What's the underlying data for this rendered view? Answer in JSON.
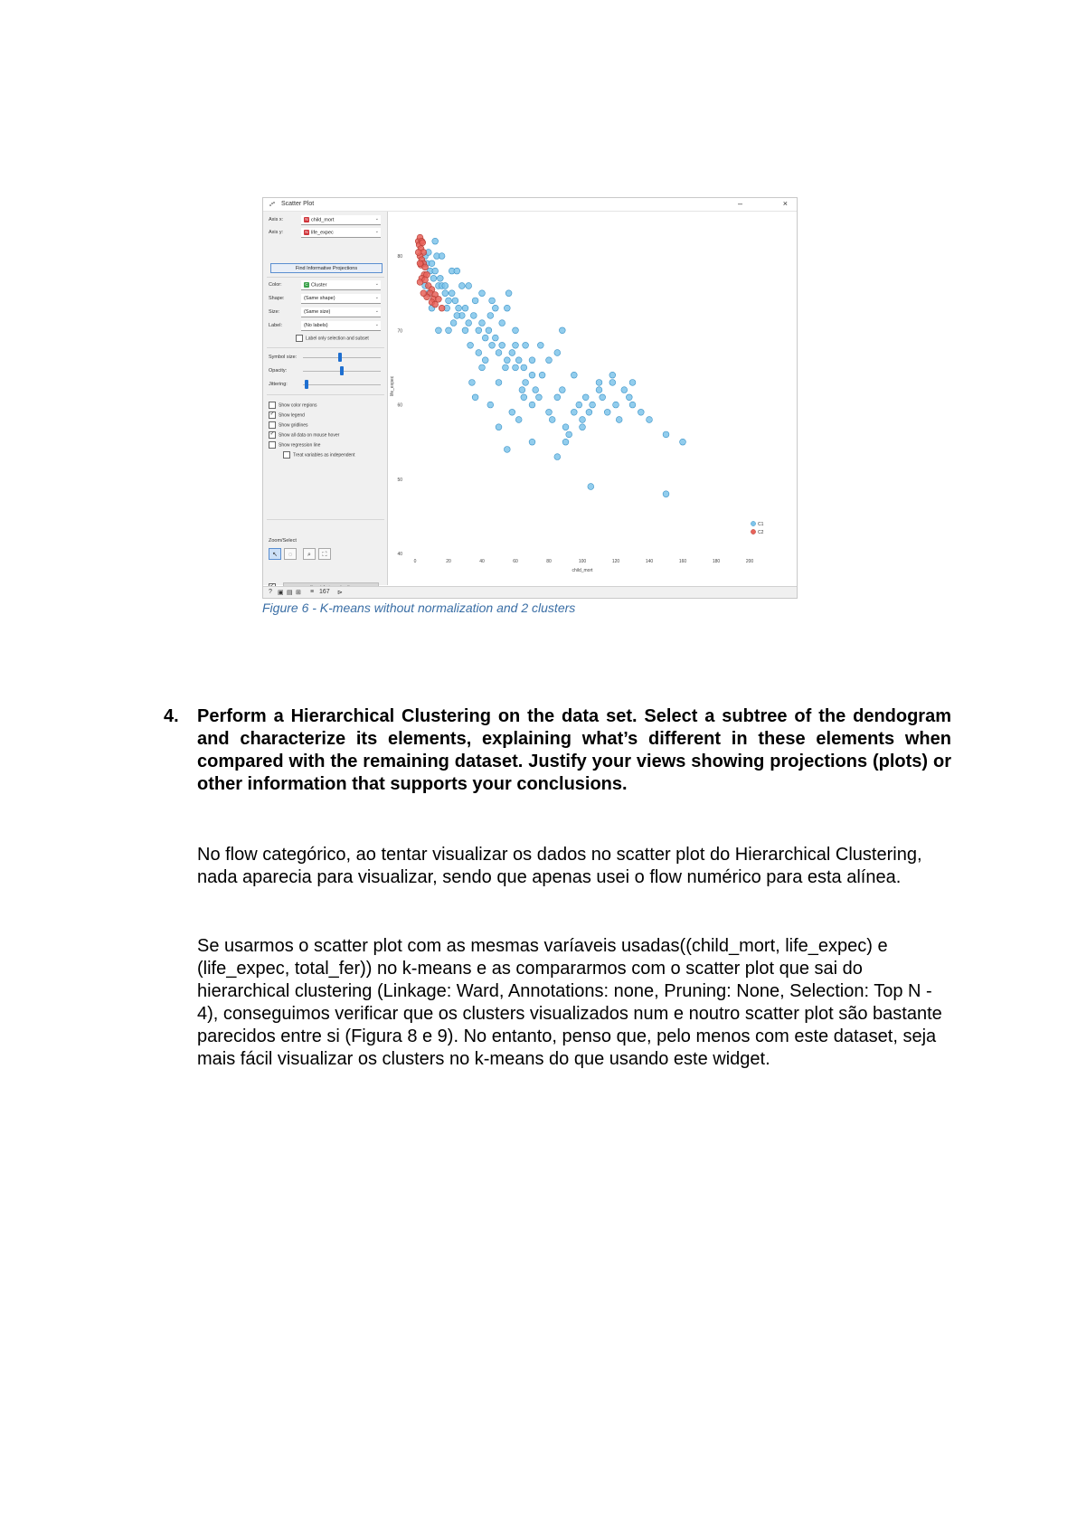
{
  "figure": {
    "window_title": "Scatter Plot",
    "controls": {
      "axis_x_label": "Axis x:",
      "axis_x_value": "child_mort",
      "axis_y_label": "Axis y:",
      "axis_y_value": "life_expec",
      "find_projections_label": "Find Informative Projections",
      "color_label": "Color:",
      "color_value": "Cluster",
      "shape_label": "Shape:",
      "shape_value": "(Same shape)",
      "size_label": "Size:",
      "size_value": "(Same size)",
      "label_label": "Label:",
      "label_value": "(No labels)",
      "label_only_selection": "Label only selection and subset",
      "symbol_size_label": "Symbol size:",
      "symbol_size_level": 0.45,
      "opacity_label": "Opacity:",
      "opacity_level": 0.48,
      "jittering_label": "Jittering:",
      "jittering_level": 0.02,
      "checkboxes": [
        {
          "label": "Show color regions",
          "checked": false
        },
        {
          "label": "Show legend",
          "checked": true
        },
        {
          "label": "Show gridlines",
          "checked": false
        },
        {
          "label": "Show all data on mouse hover",
          "checked": true
        },
        {
          "label": "Show regression line",
          "checked": false
        },
        {
          "label": "Treat variables as independent",
          "checked": false
        }
      ],
      "zoom_select_label": "Zoom/Select",
      "send_automatically_label": "Send Automatically",
      "status_count": "167"
    },
    "colors": {
      "cluster1": "#7fc4ea",
      "cluster1_edge": "#3a93c8",
      "cluster2": "#e8635a",
      "cluster2_edge": "#b33a32",
      "accent": "#1e6fd0"
    },
    "legend": [
      "C1",
      "C2"
    ]
  },
  "chart_data": {
    "type": "scatter",
    "xlabel": "child_mort",
    "ylabel": "life_expec",
    "xlim": [
      0,
      200
    ],
    "ylim": [
      40,
      85
    ],
    "x_ticks": [
      "0",
      "20",
      "40",
      "60",
      "80",
      "100",
      "120",
      "140",
      "160",
      "180",
      "200"
    ],
    "y_ticks": [
      "40",
      "50",
      "60",
      "70",
      "80"
    ],
    "series": [
      {
        "name": "C1",
        "points": [
          [
            6,
            80
          ],
          [
            7,
            79
          ],
          [
            8,
            80.5
          ],
          [
            9,
            78
          ],
          [
            10,
            79
          ],
          [
            11,
            77
          ],
          [
            12,
            78
          ],
          [
            13,
            80
          ],
          [
            14,
            76
          ],
          [
            15,
            77
          ],
          [
            16,
            76
          ],
          [
            18,
            75
          ],
          [
            20,
            74
          ],
          [
            22,
            75
          ],
          [
            24,
            74
          ],
          [
            26,
            73
          ],
          [
            28,
            72
          ],
          [
            30,
            73
          ],
          [
            32,
            71
          ],
          [
            35,
            72
          ],
          [
            38,
            70
          ],
          [
            40,
            71
          ],
          [
            42,
            69
          ],
          [
            44,
            70
          ],
          [
            46,
            68
          ],
          [
            48,
            69
          ],
          [
            50,
            67
          ],
          [
            52,
            68
          ],
          [
            55,
            66
          ],
          [
            58,
            67
          ],
          [
            60,
            65
          ],
          [
            62,
            66
          ],
          [
            45,
            72
          ],
          [
            48,
            73
          ],
          [
            52,
            71
          ],
          [
            55,
            73
          ],
          [
            56,
            75
          ],
          [
            60,
            70
          ],
          [
            64,
            62
          ],
          [
            65,
            61
          ],
          [
            66,
            63
          ],
          [
            70,
            60
          ],
          [
            72,
            62
          ],
          [
            74,
            61
          ],
          [
            76,
            64
          ],
          [
            80,
            59
          ],
          [
            82,
            58
          ],
          [
            85,
            61
          ],
          [
            88,
            62
          ],
          [
            90,
            57
          ],
          [
            92,
            56
          ],
          [
            95,
            59
          ],
          [
            98,
            60
          ],
          [
            100,
            58
          ],
          [
            102,
            61
          ],
          [
            104,
            59
          ],
          [
            106,
            60
          ],
          [
            110,
            62
          ],
          [
            112,
            61
          ],
          [
            115,
            59
          ],
          [
            118,
            63
          ],
          [
            120,
            60
          ],
          [
            122,
            58
          ],
          [
            125,
            62
          ],
          [
            128,
            61
          ],
          [
            130,
            60
          ],
          [
            135,
            59
          ],
          [
            140,
            58
          ],
          [
            150,
            56
          ],
          [
            160,
            55
          ],
          [
            130,
            63
          ],
          [
            118,
            64
          ],
          [
            110,
            63
          ],
          [
            85,
            67
          ],
          [
            80,
            66
          ],
          [
            70,
            66
          ],
          [
            65,
            65
          ],
          [
            88,
            70
          ],
          [
            75,
            68
          ],
          [
            95,
            64
          ],
          [
            55,
            54
          ],
          [
            50,
            57
          ],
          [
            58,
            59
          ],
          [
            62,
            58
          ],
          [
            70,
            55
          ],
          [
            85,
            53
          ],
          [
            90,
            55
          ],
          [
            100,
            57
          ],
          [
            105,
            49
          ],
          [
            150,
            48
          ],
          [
            45,
            60
          ],
          [
            36,
            61
          ],
          [
            34,
            63
          ],
          [
            40,
            65
          ],
          [
            25,
            72
          ],
          [
            20,
            70
          ],
          [
            18,
            76
          ],
          [
            22,
            78
          ],
          [
            10,
            73
          ],
          [
            14,
            70
          ],
          [
            8,
            75
          ],
          [
            30,
            70
          ],
          [
            32,
            76
          ],
          [
            40,
            75
          ],
          [
            25,
            78
          ],
          [
            12,
            82
          ],
          [
            6,
            76
          ],
          [
            16,
            80
          ],
          [
            28,
            76
          ],
          [
            36,
            74
          ],
          [
            46,
            74
          ],
          [
            60,
            68
          ],
          [
            66,
            68
          ],
          [
            70,
            64
          ],
          [
            54,
            65
          ],
          [
            50,
            63
          ],
          [
            42,
            66
          ],
          [
            38,
            67
          ],
          [
            33,
            68
          ],
          [
            23,
            71
          ],
          [
            19,
            73
          ]
        ]
      },
      {
        "name": "C2",
        "points": [
          [
            2,
            82
          ],
          [
            2.5,
            81.5
          ],
          [
            3,
            82.5
          ],
          [
            3.5,
            81
          ],
          [
            4,
            82
          ],
          [
            4.5,
            81.8
          ],
          [
            5,
            80.5
          ],
          [
            3,
            80
          ],
          [
            4,
            79.5
          ],
          [
            5,
            79
          ],
          [
            3.5,
            78.8
          ],
          [
            6,
            78.5
          ],
          [
            5.5,
            77.5
          ],
          [
            4,
            77
          ],
          [
            7,
            77.5
          ],
          [
            3,
            76.5
          ],
          [
            8,
            76
          ],
          [
            6,
            76.8
          ],
          [
            10,
            75.5
          ],
          [
            9,
            75
          ],
          [
            12,
            74.8
          ],
          [
            11,
            74.2
          ],
          [
            7,
            74.5
          ],
          [
            10,
            73.8
          ],
          [
            14,
            74.2
          ],
          [
            12,
            73.5
          ],
          [
            16,
            73
          ],
          [
            5,
            75
          ],
          [
            3,
            79
          ],
          [
            2,
            80.5
          ]
        ]
      }
    ]
  },
  "caption": "Figure 6 - K-means without normalization and 2 clusters",
  "question": {
    "number": "4.",
    "text": "Perform a Hierarchical Clustering on the data set. Select a subtree of the dendogram and characterize its elements, explaining what’s different in these elements when compared with the remaining dataset. Justify your views showing projections (plots) or other information that supports your conclusions."
  },
  "paragraphs": [
    "No flow categórico, ao tentar visualizar os dados no scatter plot do Hierarchical Clustering, nada aparecia para visualizar, sendo que apenas usei o flow numérico para esta alínea.",
    "Se usarmos o scatter plot com as mesmas varíaveis usadas((child_mort, life_expec) e (life_expec, total_fer)) no k-means e as compararmos com o scatter plot que sai do hierarchical clustering (Linkage: Ward, Annotations: none, Pruning: None, Selection: Top N - 4), conseguimos verificar que os clusters visualizados num e noutro scatter plot são bastante parecidos entre si (Figura 8 e 9). No entanto, penso que, pelo menos com este dataset, seja mais fácil visualizar os clusters no k-means do que usando este widget."
  ]
}
